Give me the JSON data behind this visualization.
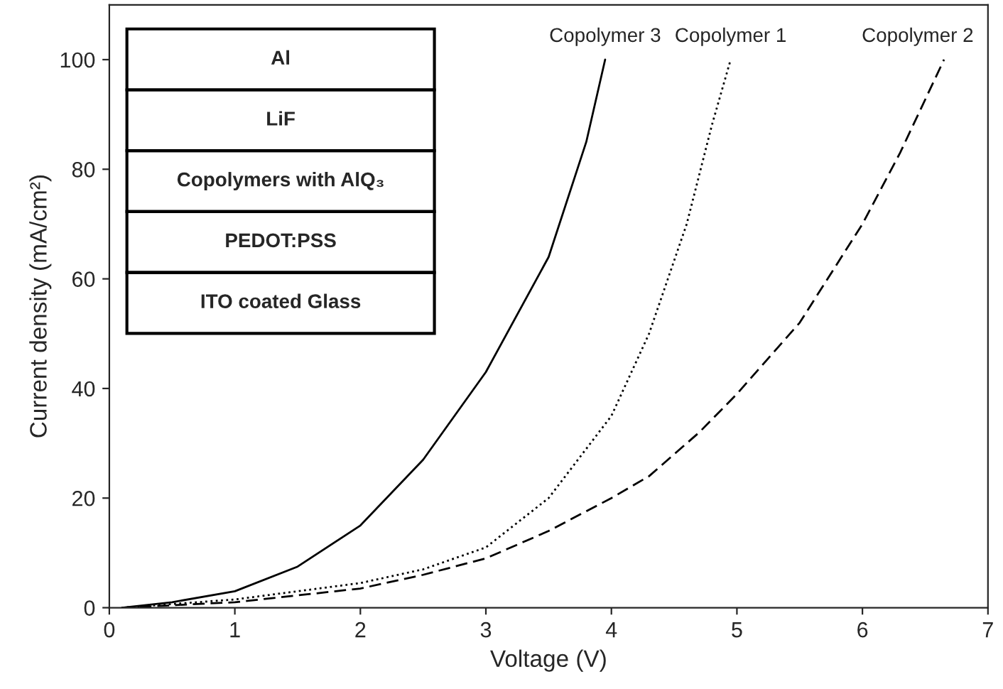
{
  "chart_data": {
    "type": "line",
    "xlabel": "Voltage (V)",
    "ylabel": "Current density (mA/cm²)",
    "xlim": [
      0,
      7
    ],
    "xticks": [
      0,
      1,
      2,
      3,
      4,
      5,
      6,
      7
    ],
    "ylim": [
      0,
      110
    ],
    "yticks": [
      0,
      20,
      40,
      60,
      80,
      100
    ],
    "grid": false,
    "legend": false,
    "series": [
      {
        "name": "Copolymer 3",
        "color": "#000000",
        "line_style": "solid",
        "x": [
          0.1,
          0.5,
          1,
          1.5,
          2,
          2.5,
          3,
          3.5,
          3.8,
          3.95
        ],
        "values": [
          0,
          1,
          3,
          7.5,
          15,
          27,
          43,
          64,
          85,
          100
        ]
      },
      {
        "name": "Copolymer 1",
        "color": "#000000",
        "line_style": "dotted",
        "x": [
          0.1,
          1,
          2,
          2.5,
          3,
          3.5,
          4,
          4.3,
          4.6,
          4.8,
          4.95
        ],
        "values": [
          0,
          1.5,
          4.5,
          7,
          11,
          20,
          35,
          50,
          70,
          88,
          100
        ]
      },
      {
        "name": "Copolymer 2",
        "color": "#000000",
        "line_style": "dashed",
        "x": [
          0.1,
          1,
          2,
          2.5,
          3,
          3.5,
          4,
          4.3,
          4.7,
          5,
          5.5,
          6,
          6.3,
          6.65
        ],
        "values": [
          0,
          1,
          3.5,
          6,
          9,
          14,
          20,
          24,
          32,
          39,
          52,
          70,
          83,
          100
        ]
      }
    ],
    "annotations": [
      "Al",
      "LiF",
      "Copolymers with AlQ₃",
      "PEDOT:PSS",
      "ITO coated Glass"
    ]
  }
}
